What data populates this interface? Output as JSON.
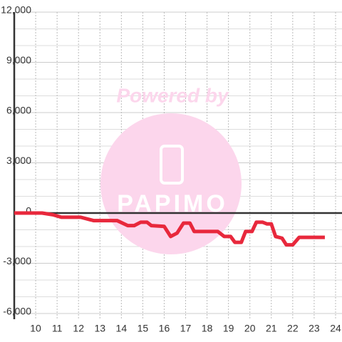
{
  "chart_data": {
    "type": "line",
    "watermark": {
      "text": "Powered by",
      "logo": "PAPIMO"
    },
    "x": [
      9.0,
      10.3,
      10.8,
      11.2,
      12.1,
      12.7,
      13.8,
      14.3,
      14.6,
      14.9,
      15.2,
      15.4,
      16.0,
      16.3,
      16.6,
      16.9,
      17.2,
      17.4,
      18.5,
      18.8,
      19.1,
      19.3,
      19.6,
      19.8,
      20.1,
      20.3,
      20.6,
      20.8,
      21.0,
      21.2,
      21.5,
      21.7,
      22.0,
      22.3,
      23.5
    ],
    "series": [
      {
        "color": "#e8283c",
        "values": [
          0,
          0,
          -100,
          -250,
          -250,
          -450,
          -450,
          -750,
          -750,
          -550,
          -550,
          -750,
          -800,
          -1400,
          -1200,
          -600,
          -600,
          -1100,
          -1100,
          -1400,
          -1400,
          -1750,
          -1750,
          -1100,
          -1100,
          -550,
          -550,
          -650,
          -650,
          -1400,
          -1500,
          -1900,
          -1900,
          -1450,
          -1450
        ]
      }
    ],
    "xlim": [
      9,
      24.3
    ],
    "xticks": [
      10,
      11,
      12,
      13,
      14,
      15,
      16,
      17,
      18,
      19,
      20,
      21,
      22,
      23,
      24
    ],
    "ylim": [
      -6000,
      12000
    ],
    "yticks": [
      {
        "value": -6000,
        "label": "-6,000"
      },
      {
        "value": -3000,
        "label": "-3,000"
      },
      0,
      {
        "value": 3000,
        "label": "3,000"
      },
      {
        "value": 6000,
        "label": "6,000"
      },
      {
        "value": 9000,
        "label": "9,000"
      },
      {
        "value": 12000,
        "label": "12,000"
      }
    ],
    "y_minor_ticks": [
      -5000,
      -4000,
      -2000,
      -1000,
      1000,
      2000,
      4000,
      5000,
      7000,
      8000,
      10000,
      11000
    ],
    "grid": true
  }
}
